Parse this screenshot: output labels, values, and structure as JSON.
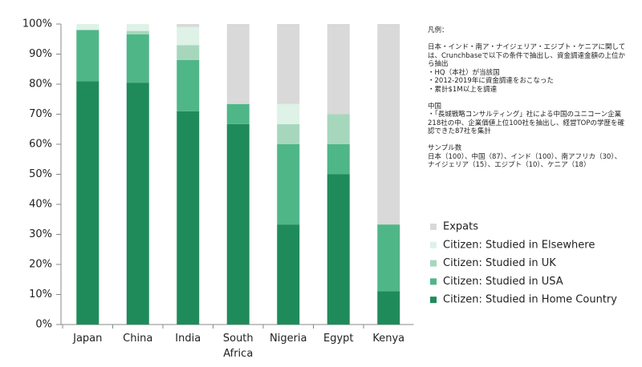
{
  "chart_data": {
    "type": "stacked_bar",
    "categories": [
      "Japan",
      "China",
      "India",
      "South Africa",
      "Nigeria",
      "Egypt",
      "Kenya"
    ],
    "series": [
      {
        "name": "Citizen: Studied in Home Country",
        "color": "#1f8b5a",
        "values": [
          81,
          80.5,
          71,
          66.7,
          33.3,
          50,
          11.1
        ]
      },
      {
        "name": "Citizen: Studied in USA",
        "color": "#4fb688",
        "values": [
          17,
          16.1,
          17,
          6.7,
          26.7,
          10,
          22.2
        ]
      },
      {
        "name": "Citizen: Studied in UK",
        "color": "#a6d7bd",
        "values": [
          0,
          1.1,
          5,
          0,
          6.7,
          10,
          0
        ]
      },
      {
        "name": "Citizen: Studied in Elsewhere",
        "color": "#def2e7",
        "values": [
          2,
          2.3,
          6,
          0,
          6.7,
          0,
          0
        ]
      },
      {
        "name": "Expats",
        "color": "#d9d9d9",
        "values": [
          0,
          0,
          1,
          26.6,
          26.6,
          30,
          66.7
        ]
      }
    ],
    "ylim": [
      0,
      100
    ],
    "yticks": [
      {
        "value": 0,
        "label": "0%"
      },
      {
        "value": 10,
        "label": "10%"
      },
      {
        "value": 20,
        "label": "20%"
      },
      {
        "value": 30,
        "label": "30%"
      },
      {
        "value": 40,
        "label": "40%"
      },
      {
        "value": 50,
        "label": "50%"
      },
      {
        "value": 60,
        "label": "60%"
      },
      {
        "value": 70,
        "label": "70%"
      },
      {
        "value": 80,
        "label": "80%"
      },
      {
        "value": 90,
        "label": "90%"
      },
      {
        "value": 100,
        "label": "100%"
      }
    ],
    "notes": [
      {
        "lines": [
          "凡例："
        ]
      },
      {
        "lines": [
          "日本・インド・南ア・ナイジェリア・エジプト・ケニアに関して",
          "は、Crunchbaseで以下の条件で抽出し、資金調達金額の上位か",
          "ら抽出",
          "・HQ（本社）が当該国",
          "・2012-2019年に資金調達をおこなった",
          "・累計$1M以上を調達"
        ]
      },
      {
        "lines": [
          "中国",
          "・「長城戦略コンサルティング」社による中国のユニコーン企業",
          "218社の中、企業価値上位100社を抽出し、経営TOPの学歴を確",
          "認できた87社を集計"
        ]
      },
      {
        "lines": [
          "サンプル数",
          "日本（100）、中国（87）、インド（100）、南アフリカ（30）、",
          "ナイジェリア（15）、エジプト（10）、ケニア（18）"
        ]
      }
    ]
  }
}
